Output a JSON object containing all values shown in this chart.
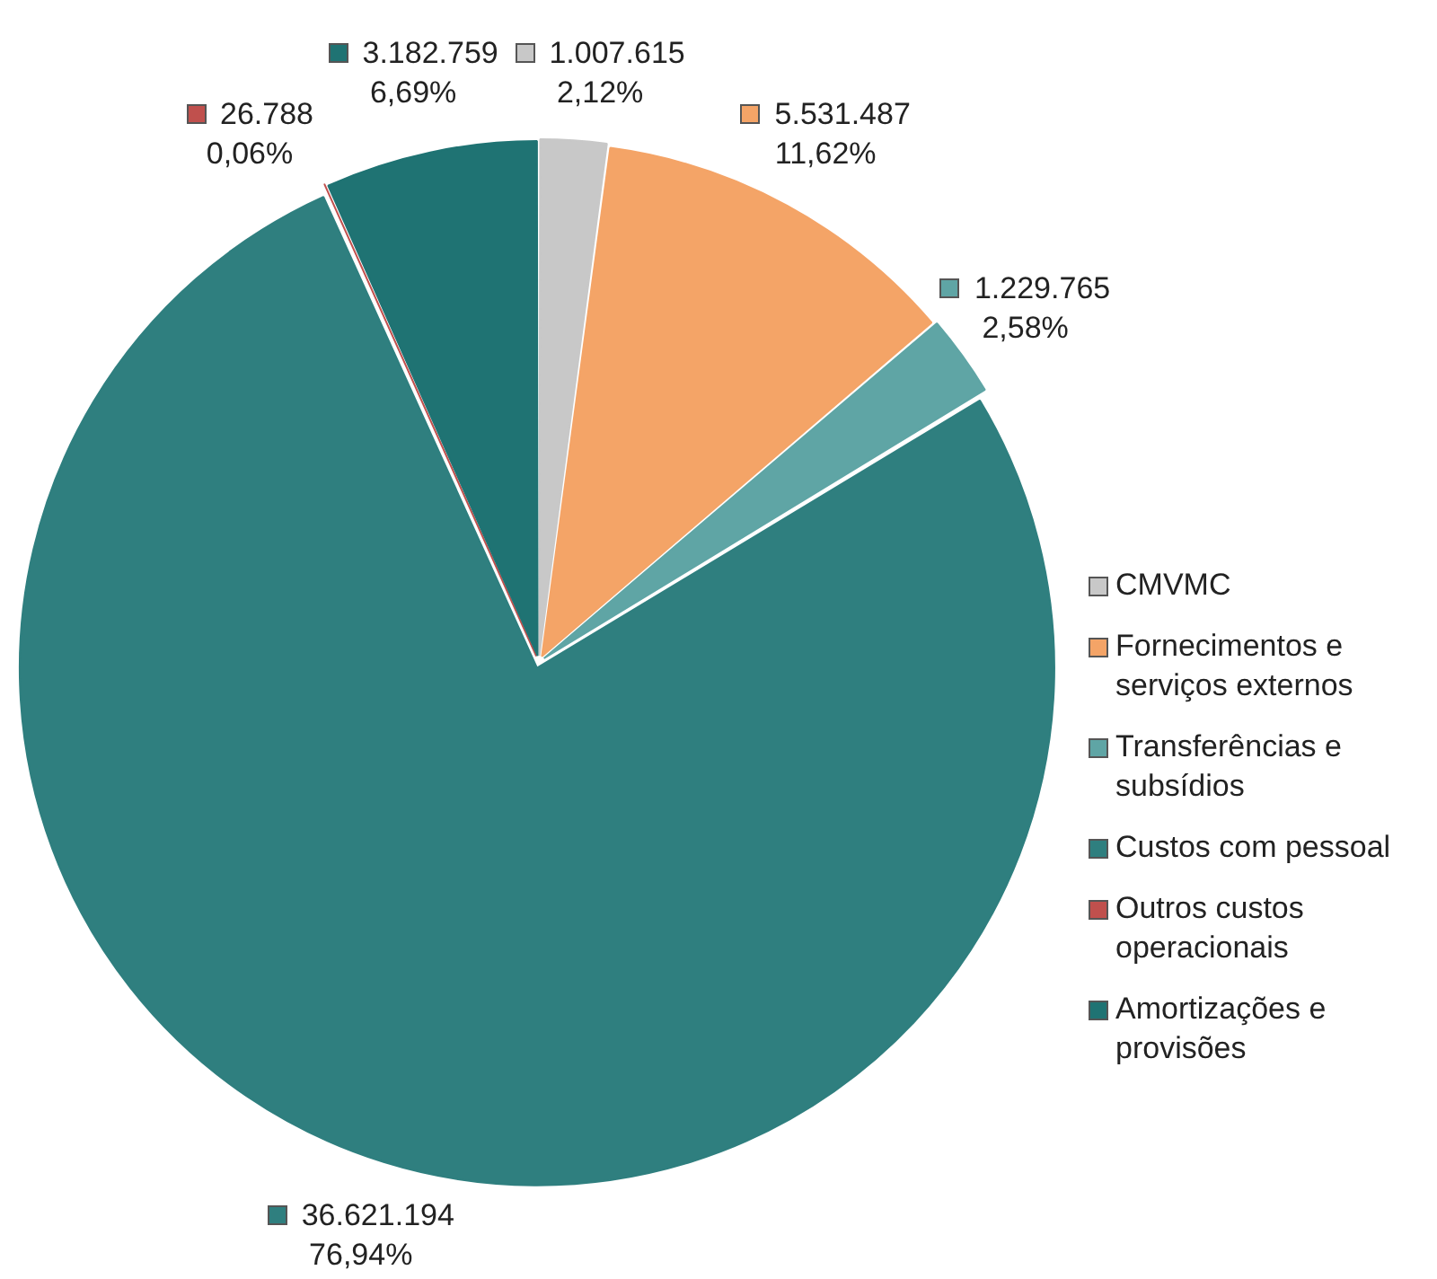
{
  "chart_data": {
    "type": "pie",
    "categories": [
      "CMVMC",
      "Fornecimentos e serviços externos",
      "Transferências e subsídios",
      "Custos com pessoal",
      "Outros custos operacionais",
      "Amortizações e provisões"
    ],
    "values": [
      1007615,
      5531487,
      1229765,
      36621194,
      26788,
      3182759
    ],
    "colors": [
      "#c8c8c8",
      "#f4a467",
      "#5fa5a5",
      "#2f7f7f",
      "#c0504d",
      "#1f7373"
    ],
    "value_labels": [
      "1.007.615\n2,12%",
      "5.531.487\n11,62%",
      "1.229.765\n2,58%",
      "36.621.194\n76,94%",
      "26.788\n0,06%",
      "3.182.759\n6,69%"
    ],
    "legend": "right"
  }
}
